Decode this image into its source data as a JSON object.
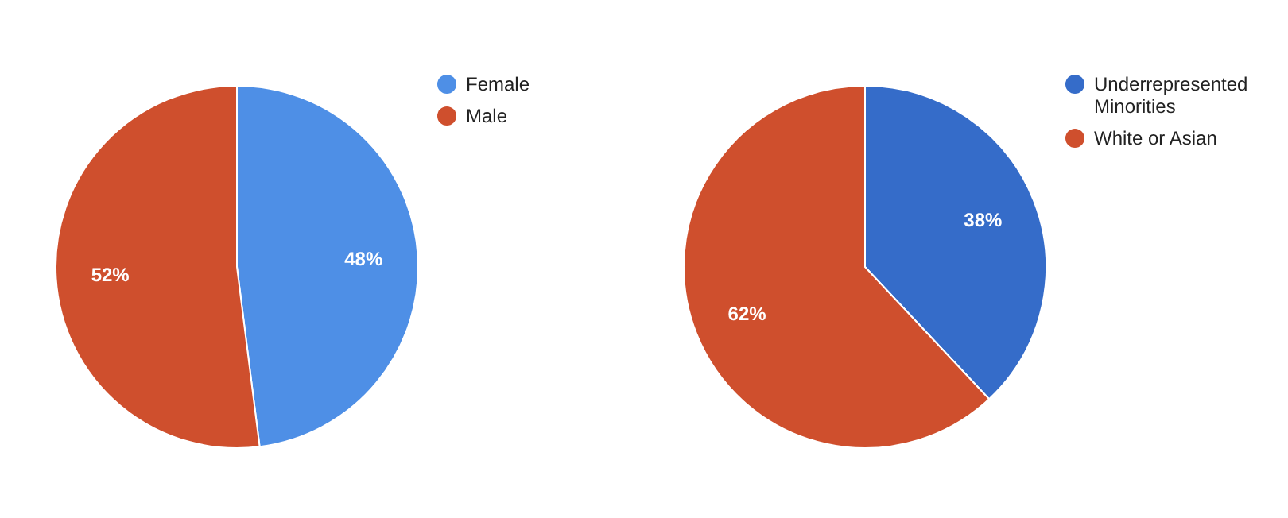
{
  "chart_data": [
    {
      "type": "pie",
      "categories": [
        "Female",
        "Male"
      ],
      "values": [
        48,
        52
      ],
      "colors": [
        "#4e8fe6",
        "#cf4f2d"
      ],
      "value_labels": [
        "48%",
        "52%"
      ],
      "legend": "top right"
    },
    {
      "type": "pie",
      "categories": [
        "Underrepresented Minorities",
        "White or Asian"
      ],
      "values": [
        38,
        62
      ],
      "colors": [
        "#356cc9",
        "#cf4f2d"
      ],
      "value_labels": [
        "38%",
        "62%"
      ],
      "legend": "top right"
    }
  ]
}
